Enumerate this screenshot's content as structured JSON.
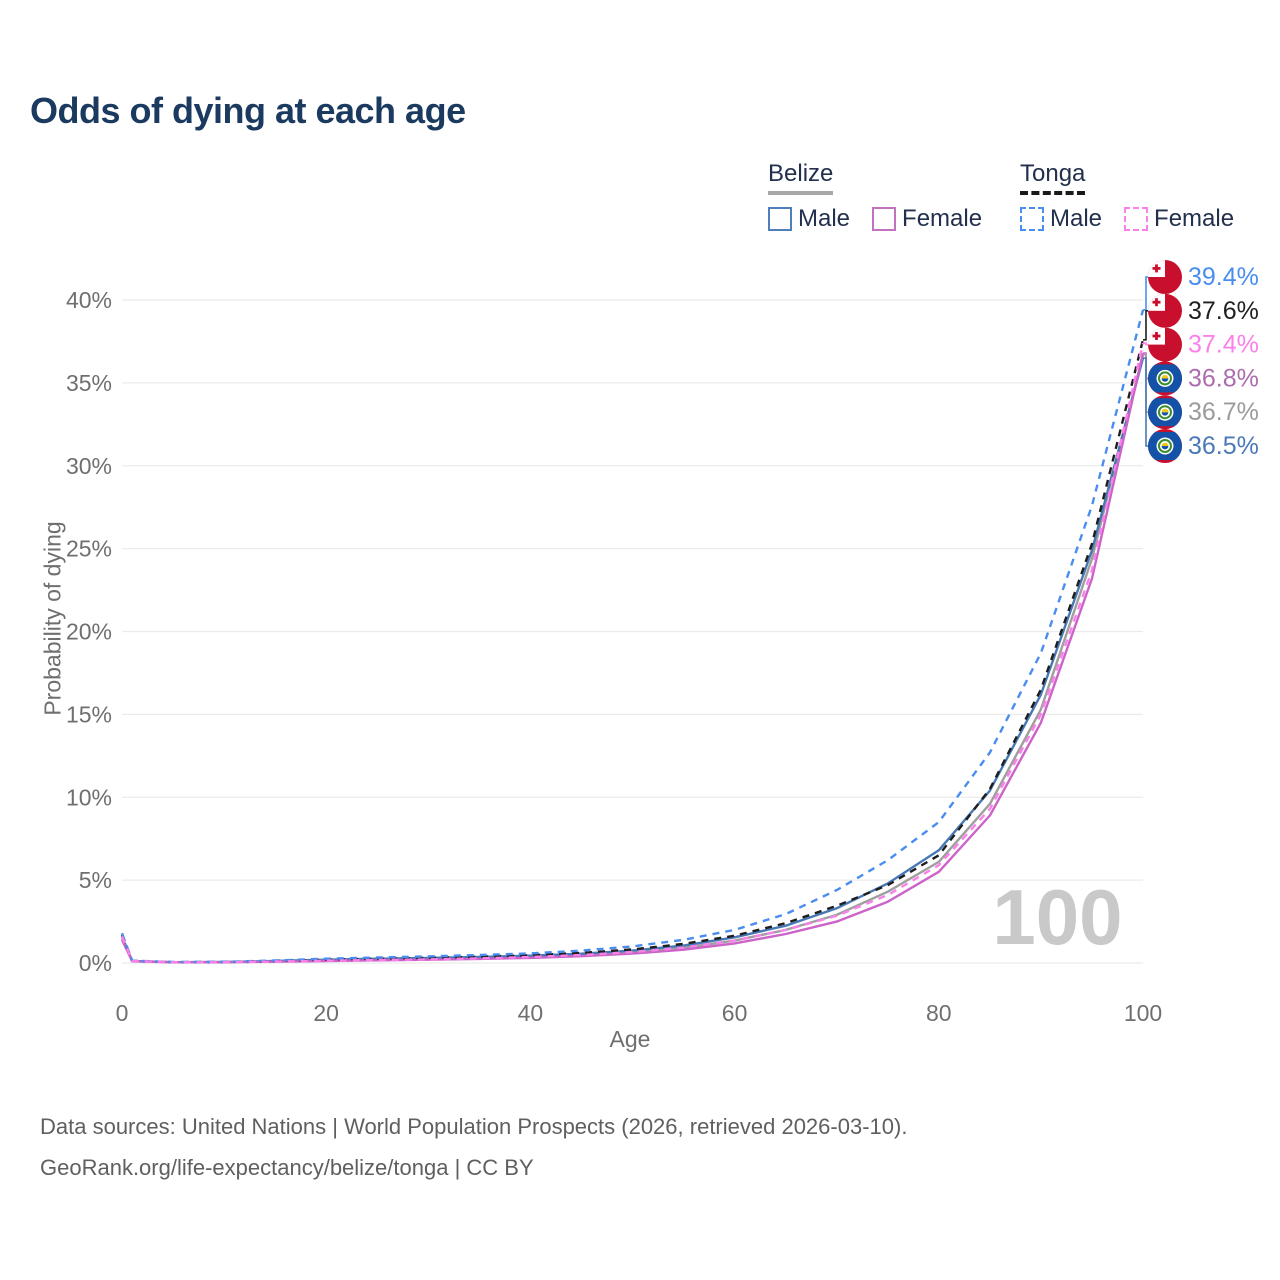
{
  "title": "Odds of dying at each age",
  "legend": {
    "groups": [
      {
        "country": "Belize",
        "style": "solid",
        "items": [
          {
            "label": "Male",
            "color": "#4e7fb8"
          },
          {
            "label": "Female",
            "color": "#c172be"
          }
        ]
      },
      {
        "country": "Tonga",
        "style": "dashed",
        "items": [
          {
            "label": "Male",
            "color": "#4a8df0"
          },
          {
            "label": "Female",
            "color": "#fb80ea"
          }
        ]
      }
    ]
  },
  "watermark": "100",
  "footer": {
    "line1": "Data sources: United Nations | World Population Prospects (2026, retrieved 2026-03-10).",
    "line2": "GeoRank.org/life-expectancy/belize/tonga | CC BY"
  },
  "flag_colors": {
    "tonga_red": "#c8102e",
    "belize_blue": "#1452a8",
    "belize_red": "#c8102e",
    "belize_green": "#3a8e2e",
    "belize_yellow": "#f0c419"
  },
  "chart_data": {
    "type": "line",
    "title": "Odds of dying at each age",
    "xlabel": "Age",
    "ylabel": "Probability of dying",
    "xlim": [
      0,
      100
    ],
    "ylim": [
      0,
      40
    ],
    "x_ticks": [
      0,
      20,
      40,
      60,
      80,
      100
    ],
    "y_ticks": [
      0,
      5,
      10,
      15,
      20,
      25,
      30,
      35,
      40
    ],
    "y_tick_suffix": "%",
    "grid": "horizontal",
    "legend_position": "top-right",
    "ages": [
      0,
      1,
      5,
      10,
      15,
      20,
      25,
      30,
      35,
      40,
      45,
      50,
      55,
      60,
      65,
      70,
      75,
      80,
      85,
      90,
      95,
      100
    ],
    "series": [
      {
        "name": "belize-total",
        "country": "belize",
        "sex": "total",
        "color": "#9f9f9f",
        "dash": false,
        "label_color": "#9b9b9b",
        "end_label": "36.7%",
        "values": [
          1.5,
          0.11,
          0.05,
          0.05,
          0.1,
          0.16,
          0.21,
          0.25,
          0.3,
          0.37,
          0.48,
          0.65,
          0.92,
          1.35,
          2.0,
          2.9,
          4.3,
          6.1,
          9.6,
          15.3,
          24.4,
          36.7
        ]
      },
      {
        "name": "belize-male",
        "country": "belize",
        "sex": "male",
        "color": "#4878b4",
        "dash": false,
        "label_color": "#4b79b7",
        "end_label": "36.5%",
        "values": [
          1.6,
          0.12,
          0.05,
          0.06,
          0.12,
          0.2,
          0.26,
          0.31,
          0.36,
          0.44,
          0.56,
          0.75,
          1.05,
          1.55,
          2.25,
          3.3,
          4.8,
          6.8,
          10.4,
          16.2,
          24.9,
          36.5
        ]
      },
      {
        "name": "belize-female",
        "country": "belize",
        "sex": "female",
        "color": "#cb63c8",
        "dash": false,
        "label_color": "#ad6cae",
        "end_label": "36.8%",
        "values": [
          1.4,
          0.1,
          0.04,
          0.05,
          0.08,
          0.12,
          0.16,
          0.2,
          0.25,
          0.31,
          0.41,
          0.57,
          0.8,
          1.18,
          1.75,
          2.5,
          3.7,
          5.5,
          8.9,
          14.5,
          23.2,
          36.8
        ]
      },
      {
        "name": "tonga-total",
        "country": "tonga",
        "sex": "total",
        "color": "#1e1e1e",
        "dash": true,
        "label_color": "#1f1f1f",
        "end_label": "37.6%",
        "values": [
          1.7,
          0.13,
          0.05,
          0.06,
          0.12,
          0.2,
          0.26,
          0.31,
          0.38,
          0.47,
          0.61,
          0.82,
          1.15,
          1.65,
          2.4,
          3.45,
          4.7,
          6.5,
          10.5,
          16.5,
          25.3,
          37.6
        ]
      },
      {
        "name": "tonga-male",
        "country": "tonga",
        "sex": "male",
        "color": "#4a8df0",
        "dash": true,
        "label_color": "#4a8df0",
        "end_label": "39.4%",
        "values": [
          1.8,
          0.14,
          0.06,
          0.07,
          0.15,
          0.26,
          0.33,
          0.4,
          0.48,
          0.58,
          0.75,
          1.0,
          1.4,
          2.0,
          2.95,
          4.4,
          6.2,
          8.5,
          12.7,
          18.7,
          27.6,
          39.4
        ]
      },
      {
        "name": "tonga-female",
        "country": "tonga",
        "sex": "female",
        "color": "#fb80ea",
        "dash": true,
        "label_color": "#fb80ea",
        "end_label": "37.4%",
        "values": [
          1.6,
          0.12,
          0.05,
          0.05,
          0.09,
          0.14,
          0.18,
          0.22,
          0.28,
          0.36,
          0.48,
          0.66,
          0.93,
          1.35,
          2.0,
          2.85,
          4.1,
          5.9,
          9.3,
          15.0,
          23.7,
          37.4
        ]
      }
    ]
  }
}
